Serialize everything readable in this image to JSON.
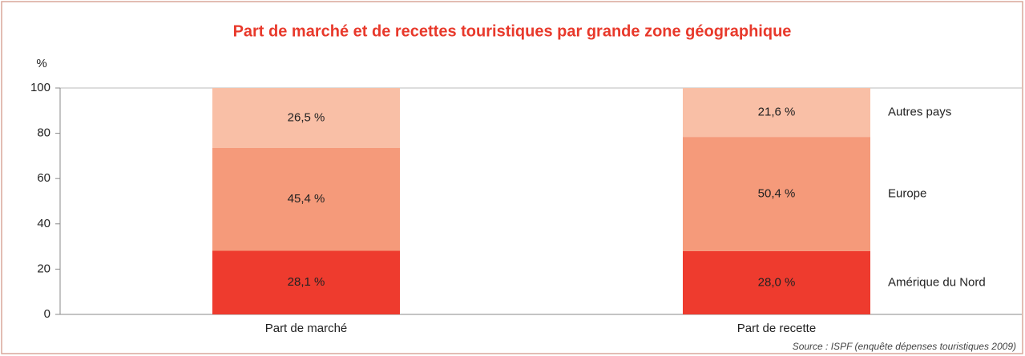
{
  "chart_data": {
    "type": "stacked_bar",
    "title": "Part de marché et de recettes touristiques par grande zone géographique",
    "ylabel": "%",
    "source": "Source : ISPF (enquête dépenses touristiques 2009)",
    "categories": [
      "Part de marché",
      "Part de recette"
    ],
    "series": [
      {
        "name": "Amérique du Nord",
        "color": "#ee3b2e",
        "values": [
          28.1,
          28.0
        ],
        "value_labels": [
          "28,1 %",
          "28,0 %"
        ]
      },
      {
        "name": "Europe",
        "color": "#f59a7a",
        "values": [
          45.4,
          50.4
        ],
        "value_labels": [
          "45,4 %",
          "50,4 %"
        ]
      },
      {
        "name": "Autres pays",
        "color": "#f9bfa6",
        "values": [
          26.5,
          21.6
        ],
        "value_labels": [
          "26,5 %",
          "21,6 %"
        ]
      }
    ],
    "ylim": [
      0,
      100
    ],
    "yticks": [
      0,
      20,
      40,
      60,
      80,
      100
    ]
  }
}
